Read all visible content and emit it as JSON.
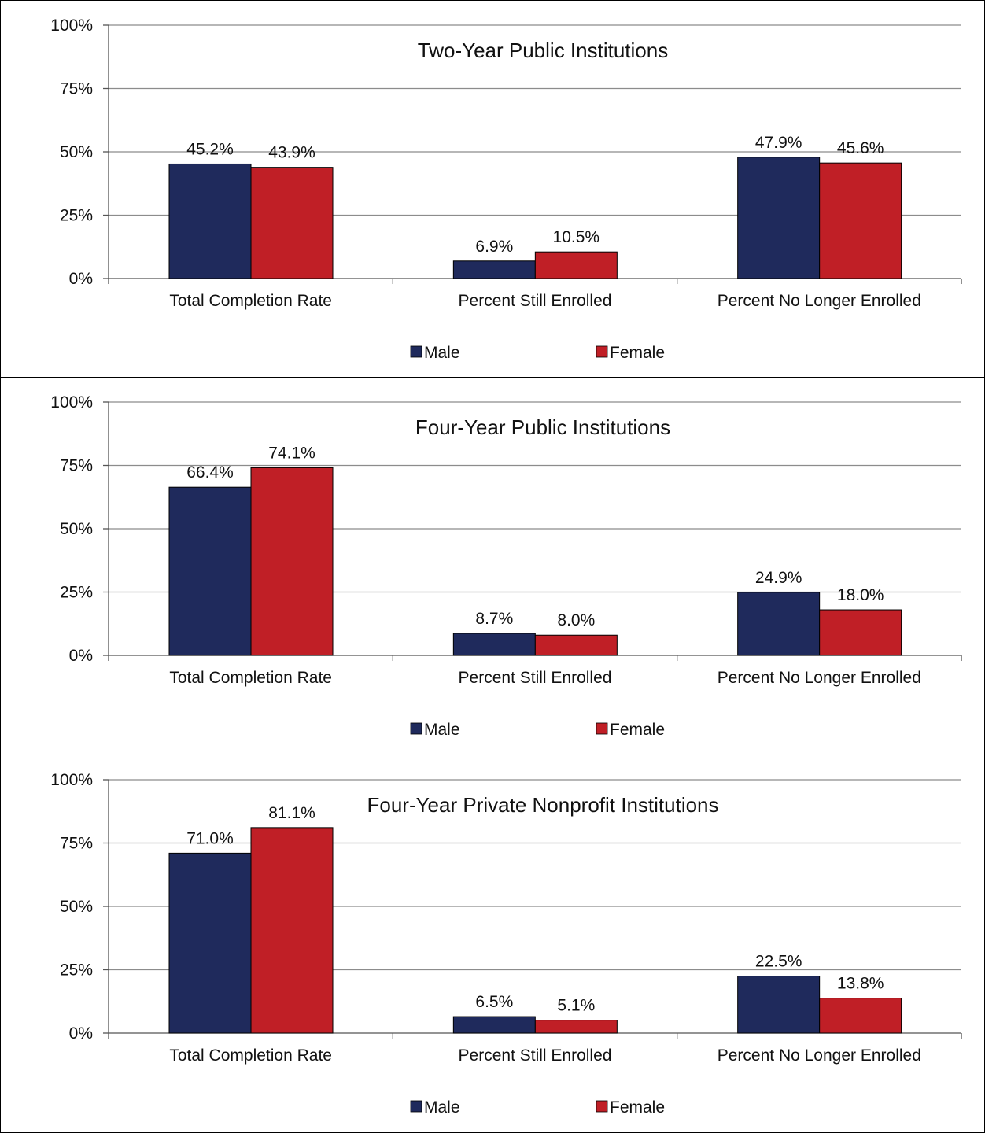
{
  "colors": {
    "male": "#1f2a5c",
    "female": "#c01f26",
    "grid": "#8c8c8c"
  },
  "chart_data": [
    {
      "type": "bar",
      "title": "Two-Year Public Institutions",
      "categories": [
        "Total Completion Rate",
        "Percent Still Enrolled",
        "Percent No Longer Enrolled"
      ],
      "series": [
        {
          "name": "Male",
          "values": [
            45.2,
            6.9,
            47.9
          ]
        },
        {
          "name": "Female",
          "values": [
            43.9,
            10.5,
            45.6
          ]
        }
      ],
      "data_labels": [
        [
          "45.2%",
          "6.9%",
          "47.9%"
        ],
        [
          "43.9%",
          "10.5%",
          "45.6%"
        ]
      ],
      "yticks": [
        "0%",
        "25%",
        "50%",
        "75%",
        "100%"
      ],
      "ylim": [
        0,
        100
      ],
      "grid": true,
      "legend": "bottom"
    },
    {
      "type": "bar",
      "title": "Four-Year Public Institutions",
      "categories": [
        "Total Completion Rate",
        "Percent Still Enrolled",
        "Percent No Longer Enrolled"
      ],
      "series": [
        {
          "name": "Male",
          "values": [
            66.4,
            8.7,
            24.9
          ]
        },
        {
          "name": "Female",
          "values": [
            74.1,
            8.0,
            18.0
          ]
        }
      ],
      "data_labels": [
        [
          "66.4%",
          "8.7%",
          "24.9%"
        ],
        [
          "74.1%",
          "8.0%",
          "18.0%"
        ]
      ],
      "yticks": [
        "0%",
        "25%",
        "50%",
        "75%",
        "100%"
      ],
      "ylim": [
        0,
        100
      ],
      "grid": true,
      "legend": "bottom"
    },
    {
      "type": "bar",
      "title": "Four-Year Private Nonprofit Institutions",
      "categories": [
        "Total Completion Rate",
        "Percent Still Enrolled",
        "Percent No Longer Enrolled"
      ],
      "series": [
        {
          "name": "Male",
          "values": [
            71.0,
            6.5,
            22.5
          ]
        },
        {
          "name": "Female",
          "values": [
            81.1,
            5.1,
            13.8
          ]
        }
      ],
      "data_labels": [
        [
          "71.0%",
          "6.5%",
          "22.5%"
        ],
        [
          "81.1%",
          "5.1%",
          "13.8%"
        ]
      ],
      "yticks": [
        "0%",
        "25%",
        "50%",
        "75%",
        "100%"
      ],
      "ylim": [
        0,
        100
      ],
      "grid": true,
      "legend": "bottom"
    }
  ]
}
